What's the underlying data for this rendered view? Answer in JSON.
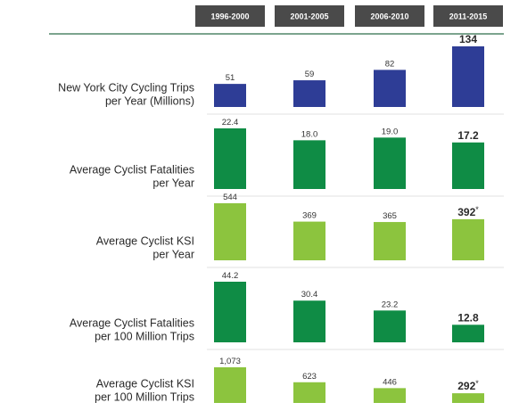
{
  "colors": {
    "header_bg": "#4a4a4a",
    "rule": "#2e6e4a",
    "trips": "#2e3d96",
    "fatalities": "#0f8c45",
    "ksi": "#8cc43e"
  },
  "chart_data": {
    "type": "bar",
    "categories": [
      "1996-2000",
      "2001-2005",
      "2006-2010",
      "2011-2015"
    ],
    "series": [
      {
        "name": "New York City Cycling Trips per Year (Millions)",
        "label_lines": [
          "New York City Cycling Trips",
          "per Year (Millions)"
        ],
        "color": "#2e3d96",
        "values": [
          51,
          59,
          82,
          134
        ],
        "value_labels": [
          "51",
          "59",
          "82",
          "134"
        ],
        "emphasis_last": true
      },
      {
        "name": "Average Cyclist Fatalities per Year",
        "label_lines": [
          "Average Cyclist Fatalities",
          "per Year"
        ],
        "color": "#0f8c45",
        "values": [
          22.4,
          18.0,
          19.0,
          17.2
        ],
        "value_labels": [
          "22.4",
          "18.0",
          "19.0",
          "17.2"
        ],
        "emphasis_last": true
      },
      {
        "name": "Average Cyclist KSI per Year",
        "label_lines": [
          "Average Cyclist KSI",
          "per Year"
        ],
        "color": "#8cc43e",
        "values": [
          544,
          369,
          365,
          392
        ],
        "value_labels": [
          "544",
          "369",
          "365",
          "392"
        ],
        "emphasis_last": true,
        "last_marker": "*"
      },
      {
        "name": "Average Cyclist Fatalities per 100 Million Trips",
        "label_lines": [
          "Average Cyclist Fatalities",
          "per 100 Million Trips"
        ],
        "color": "#0f8c45",
        "values": [
          44.2,
          30.4,
          23.2,
          12.8
        ],
        "value_labels": [
          "44.2",
          "30.4",
          "23.2",
          "12.8"
        ],
        "emphasis_last": true
      },
      {
        "name": "Average Cyclist KSI per 100 Million Trips",
        "label_lines": [
          "Average Cyclist KSI",
          "per 100 Million Trips"
        ],
        "color": "#8cc43e",
        "values": [
          1073,
          623,
          446,
          292
        ],
        "value_labels": [
          "1,073",
          "623",
          "446",
          "292"
        ],
        "emphasis_last": true,
        "last_marker": "*"
      }
    ],
    "grid": false,
    "legend": "none"
  }
}
